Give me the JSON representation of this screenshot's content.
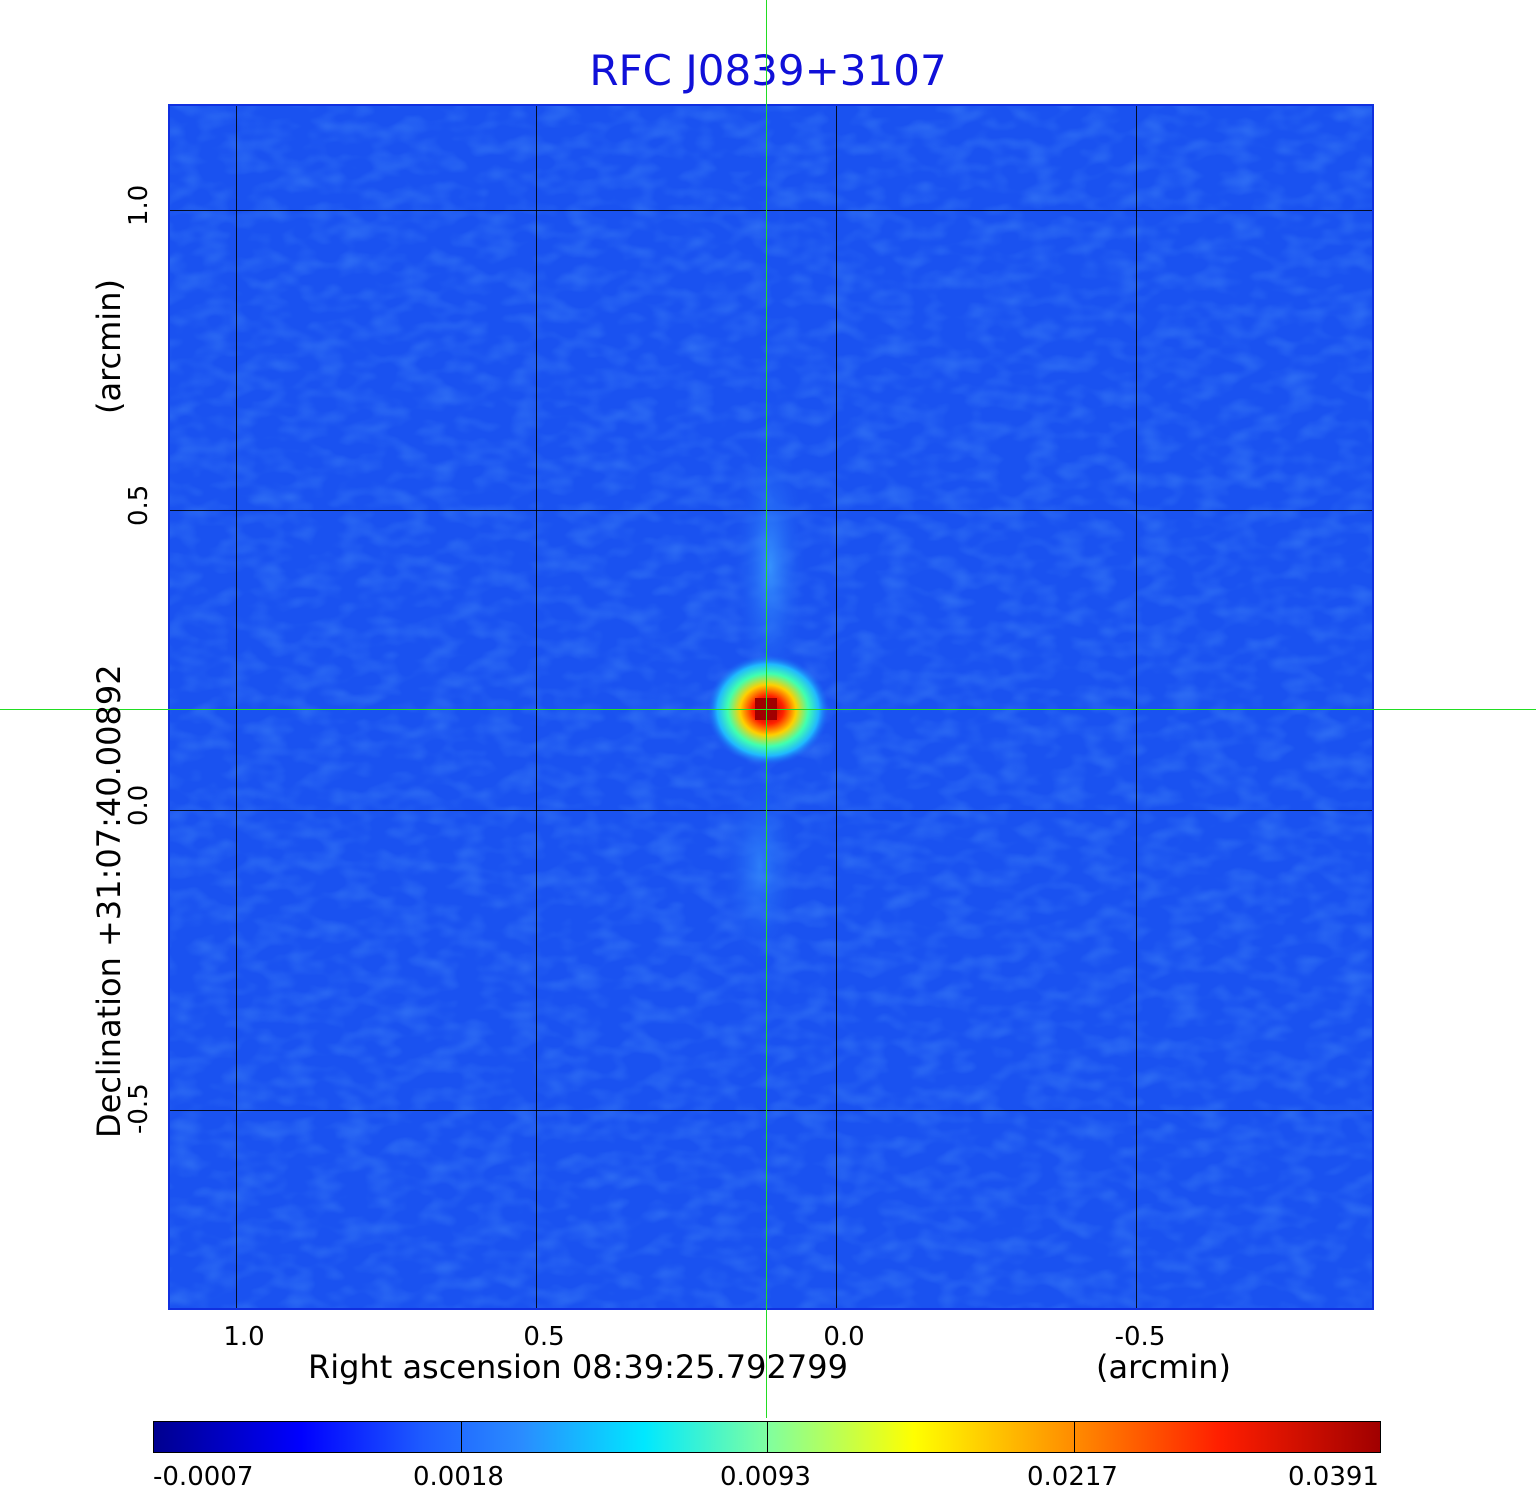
{
  "title": "RFC J0839+3107",
  "x_axis": {
    "ticks": [
      "1.0",
      "0.5",
      "0.0",
      "-0.5"
    ],
    "label": "Right ascension  08:39:25.792799",
    "unit": "(arcmin)"
  },
  "y_axis": {
    "ticks": [
      "1.0",
      "0.5",
      "0.0",
      "-0.5"
    ],
    "label": "Declination  +31:07:40.00892",
    "unit": "(arcmin)"
  },
  "colorbar": {
    "ticks": [
      "-0.0007",
      "0.0018",
      "0.0093",
      "0.0217",
      "0.0391"
    ]
  },
  "colors": {
    "background_map": "#1a52f0",
    "crosshair": "#22dd22",
    "title": "#1010d8"
  }
}
